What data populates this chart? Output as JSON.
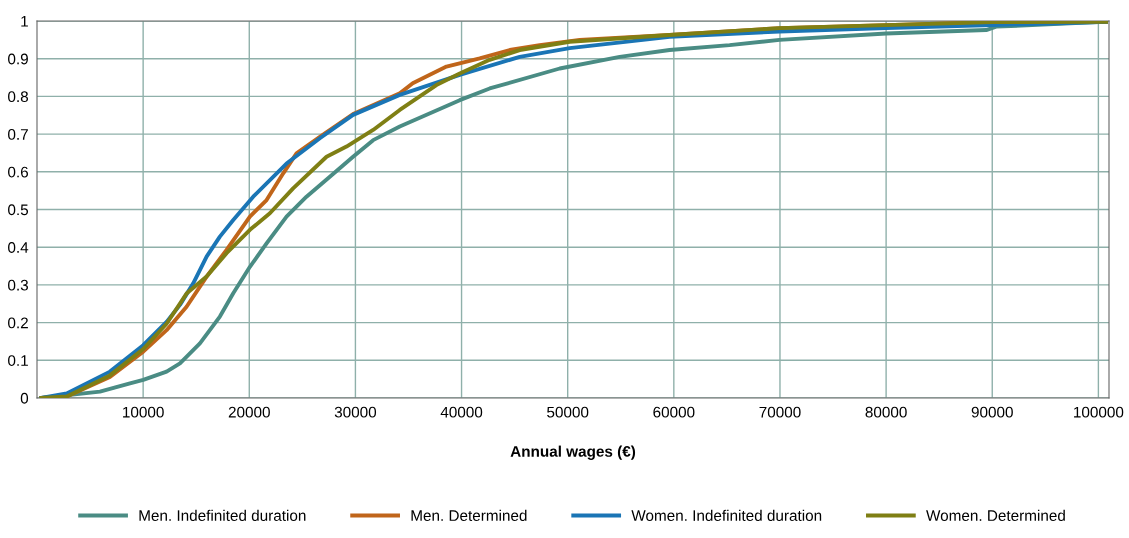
{
  "chart_data": {
    "type": "line",
    "xlabel": "Annual wages (€)",
    "xlim": [
      0,
      101000
    ],
    "ylim": [
      0,
      1
    ],
    "xticks": [
      10000,
      20000,
      30000,
      40000,
      50000,
      60000,
      70000,
      80000,
      90000,
      100000
    ],
    "yticks": [
      0,
      0.1,
      0.2,
      0.3,
      0.4,
      0.5,
      0.6,
      0.7,
      0.8,
      0.9,
      1
    ],
    "grid": true,
    "legend": "bottom",
    "marker": "none",
    "line_style": "solid",
    "series": [
      {
        "name": "Men. Indefinited duration",
        "color": "#4a8c84",
        "x": [
          400,
          5930,
          8760,
          10010,
          12210,
          13470,
          15350,
          17230,
          18490,
          20060,
          21630,
          23510,
          25390,
          27590,
          29780,
          31670,
          34180,
          39830,
          42650,
          49250,
          54900,
          59600,
          65250,
          69960,
          80000,
          89430,
          90370,
          100720
        ],
        "values": [
          0,
          0.017,
          0.039,
          0.048,
          0.07,
          0.092,
          0.145,
          0.216,
          0.278,
          0.348,
          0.41,
          0.481,
          0.534,
          0.587,
          0.64,
          0.684,
          0.72,
          0.79,
          0.821,
          0.874,
          0.905,
          0.923,
          0.936,
          0.95,
          0.967,
          0.976,
          0.985,
          0.998
        ]
      },
      {
        "name": "Men. Determined",
        "color": "#c0651a",
        "x": [
          400,
          2800,
          6870,
          10010,
          12210,
          14090,
          15980,
          17860,
          20060,
          21630,
          23200,
          24450,
          26650,
          29780,
          34180,
          35400,
          38580,
          41710,
          44540,
          47360,
          51130,
          59600,
          69960,
          80000,
          90020,
          100720
        ],
        "values": [
          0,
          0.004,
          0.056,
          0.123,
          0.18,
          0.242,
          0.322,
          0.393,
          0.481,
          0.525,
          0.596,
          0.649,
          0.693,
          0.753,
          0.808,
          0.835,
          0.879,
          0.901,
          0.923,
          0.936,
          0.95,
          0.963,
          0.981,
          0.989,
          0.997,
          0.998
        ]
      },
      {
        "name": "Women. Indefinited duration",
        "color": "#1a75b5",
        "x": [
          400,
          2800,
          6870,
          10010,
          12210,
          13470,
          14720,
          15980,
          17230,
          18490,
          20370,
          23510,
          26650,
          29780,
          34180,
          39830,
          45480,
          50190,
          59600,
          69960,
          80000,
          90020,
          100720
        ],
        "values": [
          0,
          0.012,
          0.07,
          0.14,
          0.202,
          0.247,
          0.304,
          0.375,
          0.428,
          0.472,
          0.534,
          0.622,
          0.689,
          0.751,
          0.804,
          0.857,
          0.905,
          0.928,
          0.958,
          0.972,
          0.981,
          0.989,
          0.998
        ]
      },
      {
        "name": "Women. Determined",
        "color": "#7f7f14",
        "x": [
          400,
          2800,
          6870,
          10010,
          12210,
          14090,
          15980,
          17860,
          20060,
          21940,
          24130,
          27280,
          29160,
          31670,
          34180,
          35120,
          37630,
          39830,
          42650,
          45480,
          50190,
          59600,
          69960,
          80000,
          90020,
          100720
        ],
        "values": [
          0,
          0.004,
          0.06,
          0.13,
          0.197,
          0.277,
          0.322,
          0.384,
          0.446,
          0.49,
          0.556,
          0.64,
          0.667,
          0.711,
          0.764,
          0.782,
          0.83,
          0.861,
          0.897,
          0.923,
          0.945,
          0.963,
          0.981,
          0.989,
          0.997,
          0.998
        ]
      }
    ]
  }
}
